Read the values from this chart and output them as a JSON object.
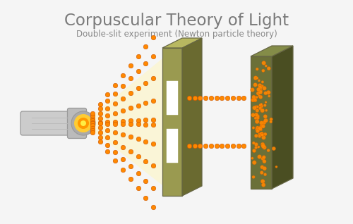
{
  "title": "Corpuscular Theory of Light",
  "subtitle": "Double-slit experiment (Newton particle theory)",
  "title_color": "#7a7a7a",
  "subtitle_color": "#888888",
  "bg_color": "#f5f5f5",
  "slit_panel_face": "#9a9a50",
  "slit_panel_side": "#6a6a30",
  "slit_panel_top": "#b8b860",
  "screen_face": "#6b7038",
  "screen_side": "#4a4e22",
  "screen_top": "#848c48",
  "orange": "#ff8800",
  "orange_edge": "#cc5500",
  "torch_body": "#cccccc",
  "torch_dark": "#999999",
  "torch_head": "#bbbbbb",
  "torch_ring": "#aaaaaa",
  "torch_glow": "#ffcc33",
  "torch_orange": "#ff9900",
  "light_cone": "#fff5bb"
}
